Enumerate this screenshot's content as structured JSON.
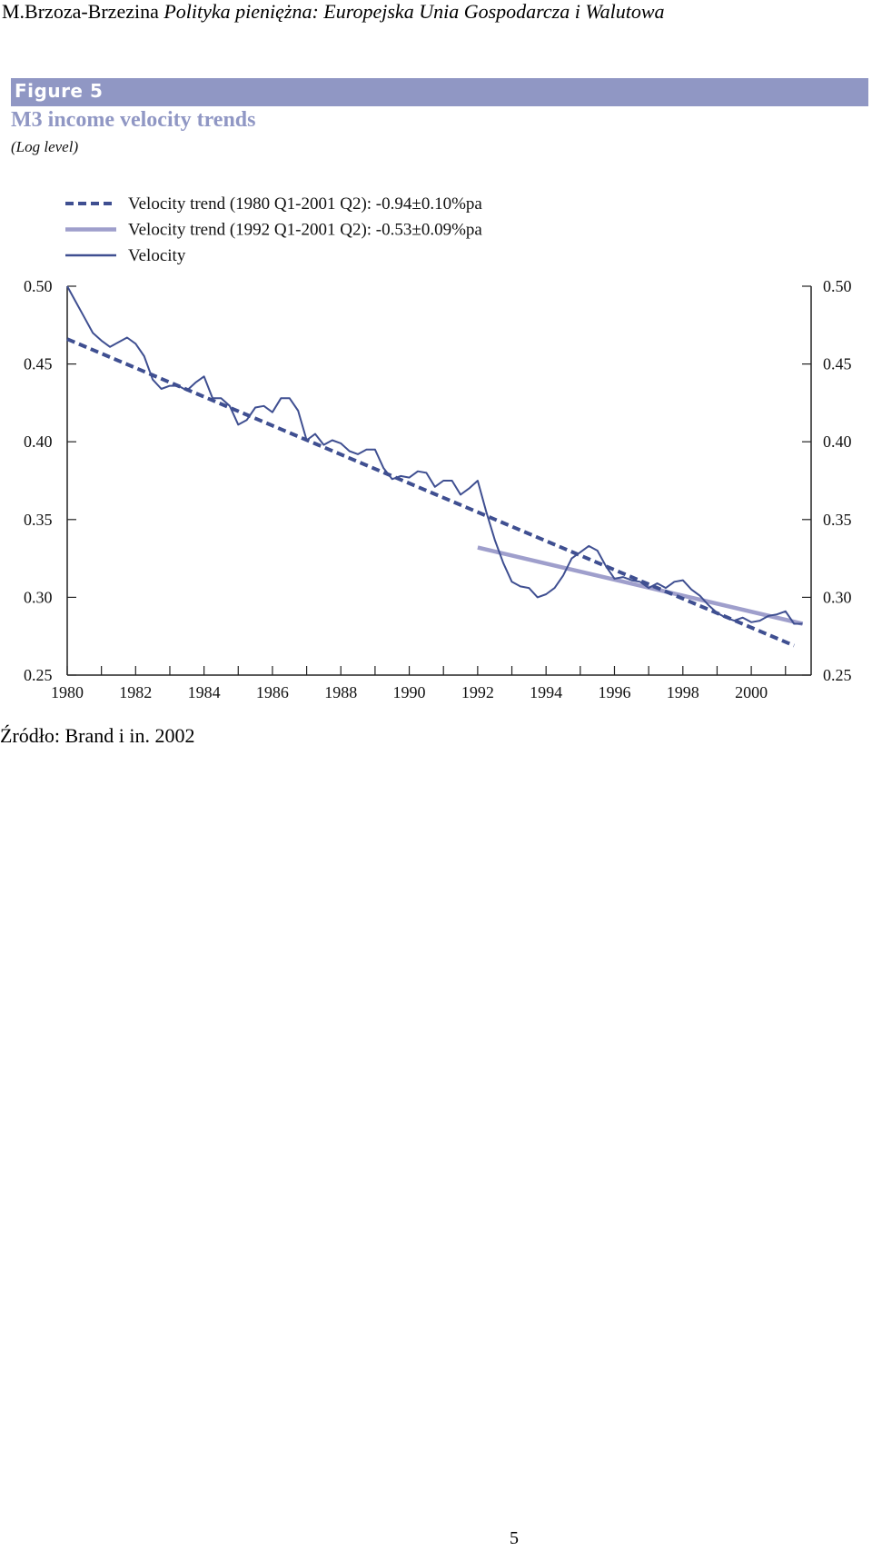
{
  "header": {
    "author": "M.Brzoza-Brzezina",
    "title": "Polityka pieniężna: Europejska Unia Gospodarcza i Walutowa"
  },
  "figure": {
    "label": "Figure 5",
    "title": "M3 income velocity trends",
    "subtitle": "(Log level)"
  },
  "chart_data": {
    "type": "line",
    "xlim": [
      1980,
      2001.75
    ],
    "ylim": [
      0.25,
      0.5
    ],
    "x_ticks": [
      "1980",
      "1982",
      "1984",
      "1986",
      "1988",
      "1990",
      "1992",
      "1994",
      "1996",
      "1998",
      "2000"
    ],
    "y_ticks": [
      "0.25",
      "0.30",
      "0.35",
      "0.40",
      "0.45",
      "0.50"
    ],
    "legend_position": "top-left",
    "grid": false,
    "colors": {
      "dark": "#3f4f91",
      "light": "#9f9fcc"
    },
    "series": [
      {
        "name": "Velocity trend (1980 Q1-2001 Q2): -0.94±0.10%pa",
        "style": "dashed",
        "x": [
          1980.0,
          2001.25
        ],
        "y": [
          0.466,
          0.269
        ]
      },
      {
        "name": "Velocity trend (1992 Q1-2001 Q2): -0.53±0.09%pa",
        "style": "solid-light",
        "x": [
          1992.0,
          2001.5
        ],
        "y": [
          0.332,
          0.283
        ]
      },
      {
        "name": "Velocity",
        "style": "solid-dark",
        "x": [
          1980.0,
          1980.25,
          1980.5,
          1980.75,
          1981.0,
          1981.25,
          1981.5,
          1981.75,
          1982.0,
          1982.25,
          1982.5,
          1982.75,
          1983.0,
          1983.25,
          1983.5,
          1983.75,
          1984.0,
          1984.25,
          1984.5,
          1984.75,
          1985.0,
          1985.25,
          1985.5,
          1985.75,
          1986.0,
          1986.25,
          1986.5,
          1986.75,
          1987.0,
          1987.25,
          1987.5,
          1987.75,
          1988.0,
          1988.25,
          1988.5,
          1988.75,
          1989.0,
          1989.25,
          1989.5,
          1989.75,
          1990.0,
          1990.25,
          1990.5,
          1990.75,
          1991.0,
          1991.25,
          1991.5,
          1991.75,
          1992.0,
          1992.25,
          1992.5,
          1992.75,
          1993.0,
          1993.25,
          1993.5,
          1993.75,
          1994.0,
          1994.25,
          1994.5,
          1994.75,
          1995.0,
          1995.25,
          1995.5,
          1995.75,
          1996.0,
          1996.25,
          1996.5,
          1996.75,
          1997.0,
          1997.25,
          1997.5,
          1997.75,
          1998.0,
          1998.25,
          1998.5,
          1998.75,
          1999.0,
          1999.25,
          1999.5,
          1999.75,
          2000.0,
          2000.25,
          2000.5,
          2000.75,
          2001.0,
          2001.25,
          2001.5
        ],
        "y": [
          0.5,
          0.49,
          0.48,
          0.47,
          0.465,
          0.461,
          0.464,
          0.467,
          0.463,
          0.455,
          0.44,
          0.434,
          0.436,
          0.436,
          0.433,
          0.438,
          0.442,
          0.428,
          0.428,
          0.423,
          0.411,
          0.414,
          0.422,
          0.423,
          0.419,
          0.428,
          0.428,
          0.42,
          0.401,
          0.405,
          0.398,
          0.401,
          0.399,
          0.394,
          0.392,
          0.395,
          0.395,
          0.383,
          0.376,
          0.378,
          0.377,
          0.381,
          0.38,
          0.371,
          0.375,
          0.375,
          0.366,
          0.37,
          0.375,
          0.355,
          0.337,
          0.322,
          0.31,
          0.307,
          0.306,
          0.3,
          0.302,
          0.306,
          0.314,
          0.325,
          0.329,
          0.333,
          0.33,
          0.32,
          0.312,
          0.313,
          0.311,
          0.31,
          0.306,
          0.309,
          0.306,
          0.31,
          0.311,
          0.305,
          0.301,
          0.295,
          0.29,
          0.287,
          0.285,
          0.287,
          0.284,
          0.285,
          0.288,
          0.289,
          0.291,
          0.283,
          0.283
        ]
      }
    ]
  },
  "source_text": "Źródło: Brand i in. 2002",
  "page_number": "5"
}
